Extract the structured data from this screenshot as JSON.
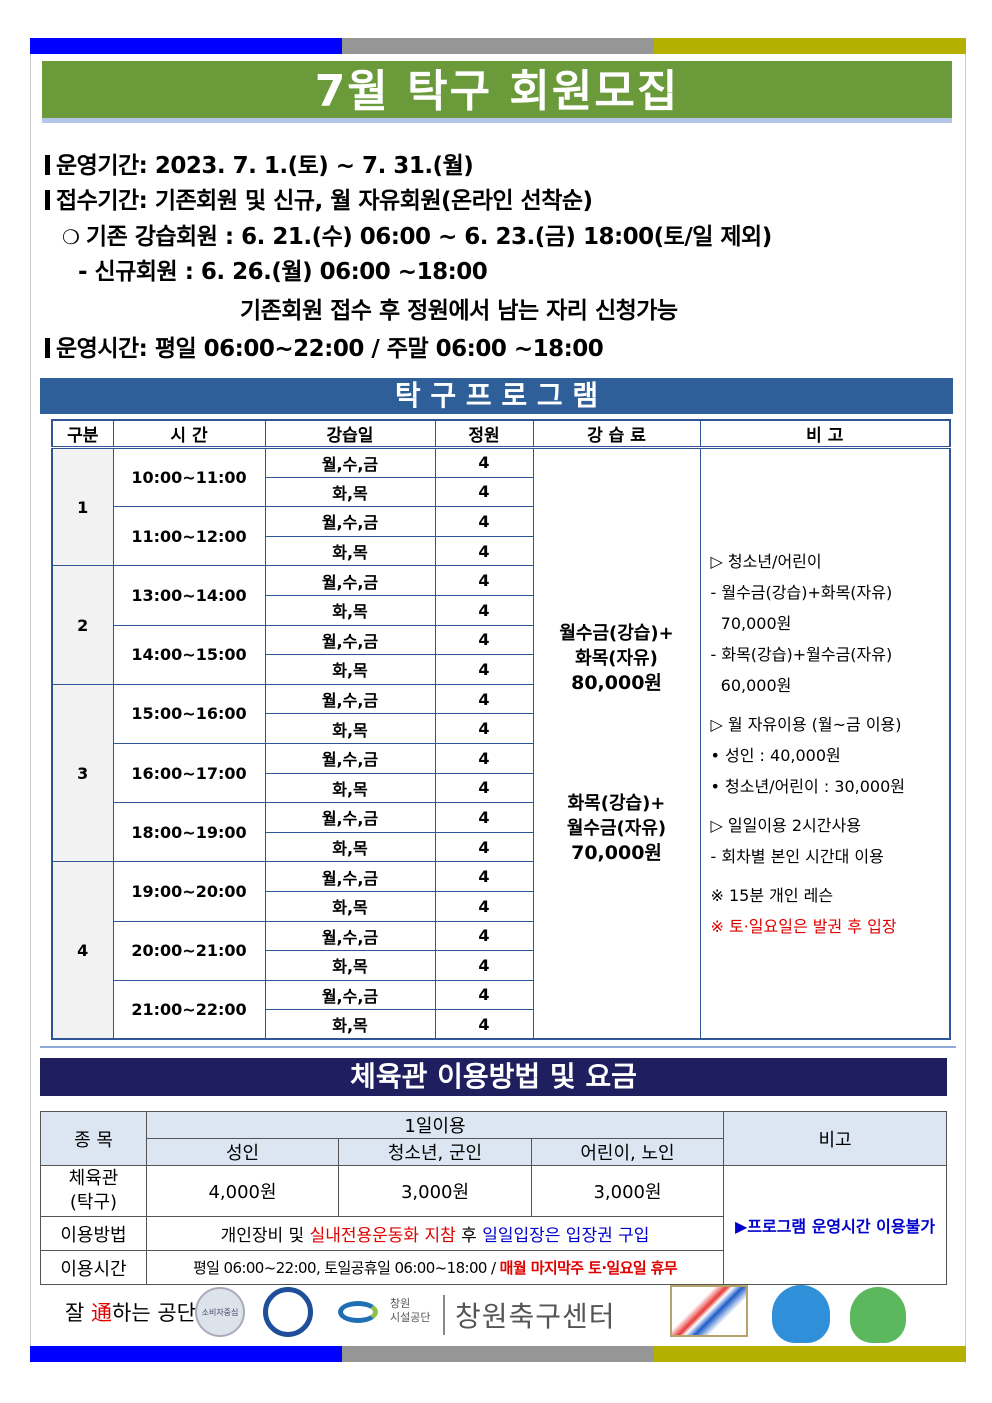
{
  "colors": {
    "stripe": [
      "#0000ff",
      "#969696",
      "#b5b000"
    ],
    "title_bg": "#6a9a3a",
    "program_bar": "#2f5f99",
    "fees_bar": "#1f1f5f",
    "table_border": "#2f5597"
  },
  "title": "7월 탁구 회원모집",
  "info": {
    "period": "운영기간: 2023. 7. 1.(토) ~ 7. 31.(월)",
    "reception": "접수기간: 기존회원 및 신규, 월 자유회원(온라인 선착순)",
    "existing": "기존 강습회원 : 6. 21.(수) 06:00 ~ 6. 23.(금) 18:00(토/일 제외)",
    "new": "- 신규회원 : 6. 26.(월) 06:00 ~18:00",
    "remaining": "기존회원 접수 후 정원에서 남는 자리 신청가능",
    "hours": "운영시간: 평일 06:00~22:00 / 주말 06:00 ~18:00"
  },
  "program": {
    "heading": "탁 구 프 로 그 램",
    "headers": [
      "구분",
      "시 간",
      "강습일",
      "정원",
      "강 습 료",
      "비 고"
    ],
    "days": [
      "월,수,금",
      "화,목"
    ],
    "capacity": "4",
    "groups": [
      {
        "no": "1",
        "times": [
          "10:00~11:00",
          "11:00~12:00"
        ]
      },
      {
        "no": "2",
        "times": [
          "13:00~14:00",
          "14:00~15:00"
        ]
      },
      {
        "no": "3",
        "times": [
          "15:00~16:00",
          "16:00~17:00",
          "18:00~19:00"
        ]
      },
      {
        "no": "4",
        "times": [
          "19:00~20:00",
          "20:00~21:00",
          "21:00~22:00"
        ]
      }
    ],
    "fees": [
      [
        "월수금(강습)+",
        "화목(자유)",
        "80,000원"
      ],
      [
        "화목(강습)+",
        "월수금(자유)",
        "70,000원"
      ]
    ],
    "notes": [
      {
        "t": "▷ 청소년/어린이"
      },
      {
        "t": "- 월수금(강습)+화목(자유)"
      },
      {
        "t": "  70,000원"
      },
      {
        "t": "- 화목(강습)+월수금(자유)"
      },
      {
        "t": "  60,000원"
      },
      {
        "t": "▷ 월 자유이용 (월~금 이용)"
      },
      {
        "t": "• 성인 : 40,000원"
      },
      {
        "t": "• 청소년/어린이 : 30,000원"
      },
      {
        "t": "▷ 일일이용 2시간사용"
      },
      {
        "t": "- 회차별 본인 시간대 이용"
      },
      {
        "t": "※ 15분 개인 레슨"
      },
      {
        "t": "※ 토·일요일은 발권 후 입장",
        "red": true
      }
    ]
  },
  "fees": {
    "heading": "체육관 이용방법 및 요금",
    "item": "종 목",
    "daily": "1일이용",
    "note": "비고",
    "cols": [
      "성인",
      "청소년, 군인",
      "어린이, 노인"
    ],
    "gym": "체육관\n(탁구)",
    "prices": [
      "4,000원",
      "3,000원",
      "3,000원"
    ],
    "method_label": "이용방법",
    "method": [
      "개인장비 및 ",
      "실내전용운동화 지참",
      " 후 ",
      "일일입장은 입장권 구입"
    ],
    "time_label": "이용시간",
    "time": [
      "평일 06:00~22:00, 토일공휴일 06:00~18:00 / ",
      "매월 마지막주 토·일요일 휴무"
    ],
    "remark": "▶프로그램 운영시간 이용불가"
  },
  "footer": {
    "slogan_a": "잘 ",
    "slogan_b": "通",
    "slogan_c": "하는 공단",
    "ccm": "소비자중심",
    "org_small": "창원\n시설공단",
    "center": "창원축구센터"
  }
}
